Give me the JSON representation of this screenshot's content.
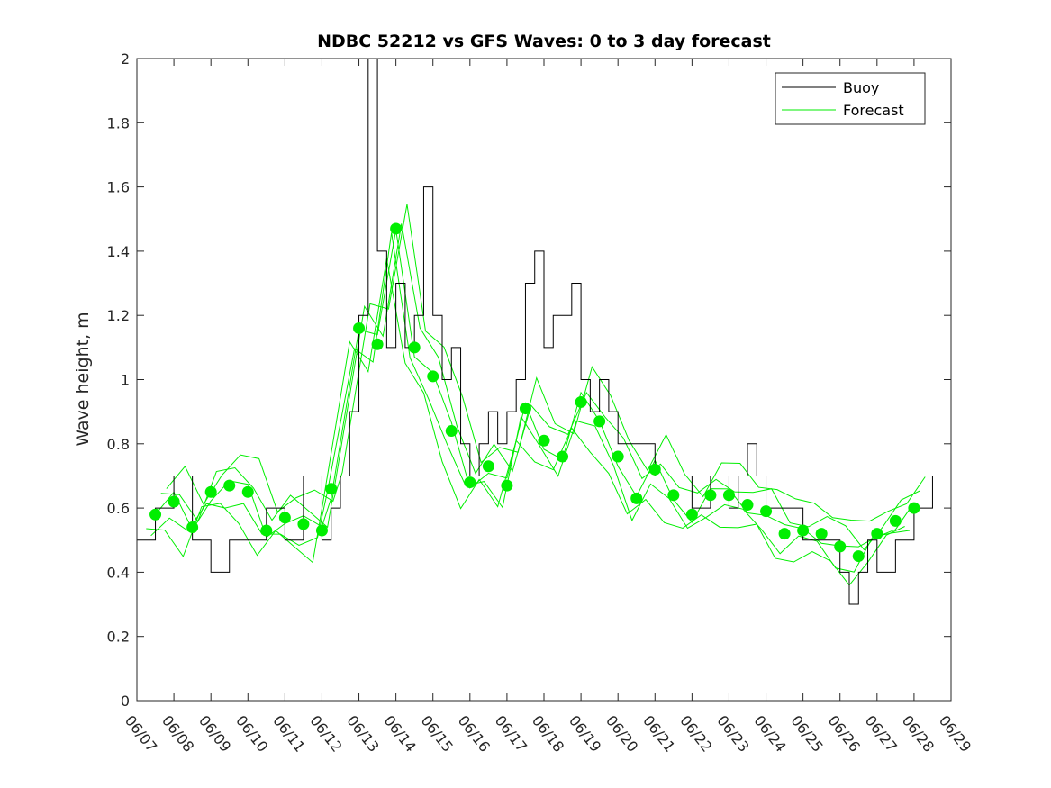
{
  "chart_data": {
    "type": "line",
    "title": "NDBC 52212 vs GFS Waves: 0 to 3 day forecast",
    "xlabel": "",
    "ylabel": "Wave height, m",
    "x_tick_labels": [
      "06/07",
      "06/08",
      "06/09",
      "06/10",
      "06/11",
      "06/12",
      "06/13",
      "06/14",
      "06/15",
      "06/16",
      "06/17",
      "06/18",
      "06/19",
      "06/20",
      "06/21",
      "06/22",
      "06/23",
      "06/24",
      "06/25",
      "06/26",
      "06/27",
      "06/28",
      "06/29"
    ],
    "y_tick_labels": [
      "0",
      "0.2",
      "0.4",
      "0.6",
      "0.8",
      "1",
      "1.2",
      "1.4",
      "1.6",
      "1.8",
      "2"
    ],
    "xlim": [
      "06/07",
      "06/29"
    ],
    "ylim": [
      0,
      2
    ],
    "legend": {
      "placement": "top-right",
      "entries": [
        "Buoy",
        "Forecast"
      ]
    },
    "colors": {
      "buoy": "#000000",
      "forecast": "#00ee00"
    },
    "grid": false,
    "series": [
      {
        "name": "Buoy",
        "x": [
          "06/07 00:00",
          "06/07 12:00",
          "06/08 00:00",
          "06/08 12:00",
          "06/09 00:00",
          "06/09 12:00",
          "06/10 00:00",
          "06/10 12:00",
          "06/11 00:00",
          "06/11 12:00",
          "06/12 00:00",
          "06/12 06:00",
          "06/12 12:00",
          "06/12 18:00",
          "06/13 00:00",
          "06/13 06:00",
          "06/13 12:00",
          "06/13 18:00",
          "06/14 00:00",
          "06/14 06:00",
          "06/14 12:00",
          "06/14 18:00",
          "06/15 00:00",
          "06/15 06:00",
          "06/15 12:00",
          "06/15 18:00",
          "06/16 00:00",
          "06/16 06:00",
          "06/16 12:00",
          "06/16 18:00",
          "06/17 00:00",
          "06/17 06:00",
          "06/17 12:00",
          "06/17 18:00",
          "06/18 00:00",
          "06/18 06:00",
          "06/18 12:00",
          "06/18 18:00",
          "06/19 00:00",
          "06/19 06:00",
          "06/19 12:00",
          "06/19 18:00",
          "06/20 00:00",
          "06/20 12:00",
          "06/21 00:00",
          "06/21 12:00",
          "06/22 00:00",
          "06/22 12:00",
          "06/23 00:00",
          "06/23 06:00",
          "06/23 12:00",
          "06/23 18:00",
          "06/24 00:00",
          "06/24 12:00",
          "06/25 00:00",
          "06/25 12:00",
          "06/26 00:00",
          "06/26 06:00",
          "06/26 12:00",
          "06/26 18:00",
          "06/27 00:00",
          "06/27 12:00",
          "06/28 00:00",
          "06/28 12:00",
          "06/29 00:00"
        ],
        "values": [
          0.5,
          0.6,
          0.7,
          0.5,
          0.4,
          0.5,
          0.5,
          0.6,
          0.5,
          0.7,
          0.5,
          0.6,
          0.7,
          0.9,
          1.2,
          2.0,
          1.4,
          1.1,
          1.3,
          1.1,
          1.2,
          1.6,
          1.2,
          1.0,
          1.1,
          0.8,
          0.7,
          0.8,
          0.9,
          0.8,
          0.9,
          1.0,
          1.3,
          1.4,
          1.1,
          1.2,
          1.2,
          1.3,
          1.0,
          0.9,
          1.0,
          0.9,
          0.8,
          0.8,
          0.7,
          0.7,
          0.6,
          0.7,
          0.6,
          0.7,
          0.8,
          0.7,
          0.6,
          0.6,
          0.5,
          0.5,
          0.4,
          0.3,
          0.4,
          0.5,
          0.4,
          0.5,
          0.6,
          0.7,
          0.7
        ]
      },
      {
        "name": "Forecast",
        "x": [
          "06/07 12:00",
          "06/08 00:00",
          "06/08 12:00",
          "06/09 00:00",
          "06/09 12:00",
          "06/10 00:00",
          "06/10 12:00",
          "06/11 00:00",
          "06/11 12:00",
          "06/12 00:00",
          "06/12 06:00",
          "06/13 00:00",
          "06/13 12:00",
          "06/14 00:00",
          "06/14 12:00",
          "06/15 00:00",
          "06/15 12:00",
          "06/16 00:00",
          "06/16 12:00",
          "06/17 00:00",
          "06/17 12:00",
          "06/18 00:00",
          "06/18 12:00",
          "06/19 00:00",
          "06/19 12:00",
          "06/20 00:00",
          "06/20 12:00",
          "06/21 00:00",
          "06/21 12:00",
          "06/22 00:00",
          "06/22 12:00",
          "06/23 00:00",
          "06/23 12:00",
          "06/24 00:00",
          "06/24 12:00",
          "06/25 00:00",
          "06/25 12:00",
          "06/26 00:00",
          "06/26 12:00",
          "06/27 00:00",
          "06/27 12:00",
          "06/28 00:00"
        ],
        "values": [
          0.58,
          0.62,
          0.54,
          0.65,
          0.67,
          0.65,
          0.53,
          0.57,
          0.55,
          0.53,
          0.66,
          1.16,
          1.11,
          1.47,
          1.1,
          1.01,
          0.84,
          0.68,
          0.73,
          0.67,
          0.91,
          0.81,
          0.76,
          0.93,
          0.87,
          0.76,
          0.63,
          0.72,
          0.64,
          0.58,
          0.64,
          0.64,
          0.61,
          0.59,
          0.52,
          0.53,
          0.52,
          0.48,
          0.45,
          0.52,
          0.56,
          0.6
        ]
      }
    ]
  }
}
